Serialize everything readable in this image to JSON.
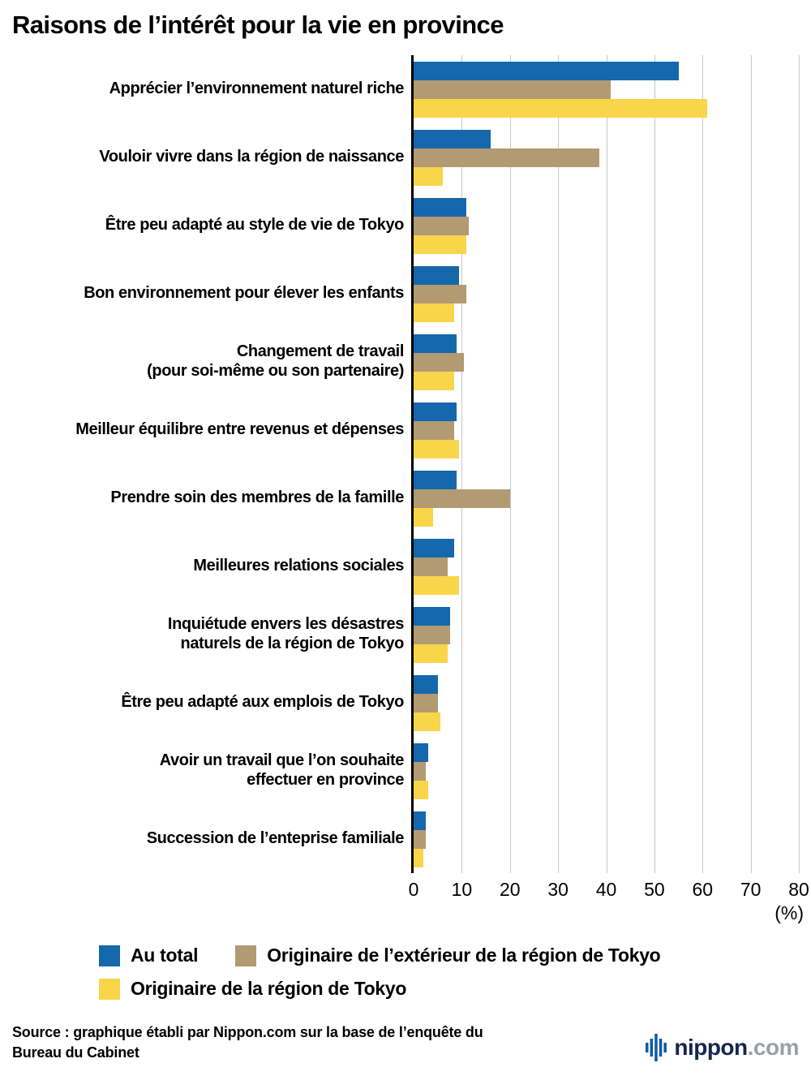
{
  "title": "Raisons de l’intérêt pour la vie en province",
  "chart_data": {
    "type": "bar",
    "orientation": "horizontal",
    "title": "Raisons de l’intérêt pour la vie en province",
    "categories": [
      "Apprécier l’environnement naturel riche",
      "Vouloir vivre dans la région de naissance",
      "Être peu adapté au style de vie de Tokyo",
      "Bon environnement pour élever les enfants",
      "Changement de travail\n(pour soi-même ou son partenaire)",
      "Meilleur équilibre entre revenus et dépenses",
      "Prendre soin des membres de la famille",
      "Meilleures relations sociales",
      "Inquiétude envers les désastres\nnaturels de la région de Tokyo",
      "Être peu adapté aux emplois de Tokyo",
      "Avoir un travail que l’on souhaite\neffectuer en province",
      "Succession de l’enteprise familiale"
    ],
    "series": [
      {
        "key": "au-total",
        "name": "Au total",
        "color": "#1568ac",
        "values": [
          55,
          16,
          11,
          9.5,
          9,
          9,
          9,
          8.5,
          7.5,
          5,
          3,
          2.5
        ]
      },
      {
        "key": "exterieur-tokyo",
        "name": "Originaire de l’extérieur de la région de Tokyo",
        "color": "#b29a72",
        "values": [
          41,
          38.5,
          11.5,
          11,
          10.5,
          8.5,
          20,
          7,
          7.5,
          5,
          2.5,
          2.5
        ]
      },
      {
        "key": "region-tokyo",
        "name": "Originaire de la région de Tokyo",
        "color": "#f9d549",
        "values": [
          61,
          6,
          11,
          8.5,
          8.5,
          9.5,
          4,
          9.5,
          7,
          5.5,
          3,
          2
        ]
      }
    ],
    "xlim": [
      0,
      80
    ],
    "xticks": [
      0,
      10,
      20,
      30,
      40,
      50,
      60,
      70,
      80
    ],
    "x_unit_label": "(%)",
    "grid": true,
    "legend_position": "bottom",
    "axis_color": "#000000",
    "gridline_color": "#c8c8c8"
  },
  "source": {
    "line1": "Source : graphique établi par Nippon.com sur la base de l’enquête du",
    "line2": "Bureau du Cabinet"
  },
  "branding": {
    "name": "nippon",
    "tld": ".com"
  }
}
